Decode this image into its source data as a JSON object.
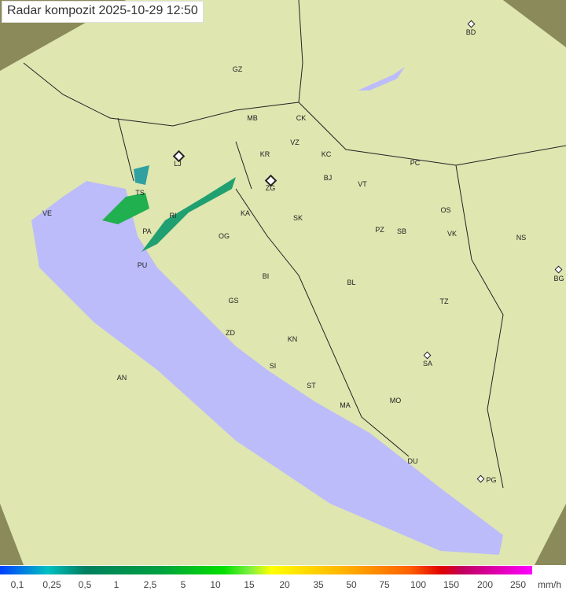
{
  "title": "Radar kompozit  2025-10-29   12:50",
  "colors": {
    "sea": "#bcbcfa",
    "land": "#dfe6b0",
    "outside": "#8a8a5a",
    "radar_echo": "#20a060"
  },
  "cities": [
    "BD",
    "GZ",
    "MB",
    "CK",
    "VZ",
    "KR",
    "KC",
    "PC",
    "LJ",
    "ZG",
    "BJ",
    "VT",
    "VE",
    "TS",
    "KA",
    "SK",
    "OS",
    "RI",
    "PA",
    "PZ",
    "SB",
    "VK",
    "NS",
    "OG",
    "PU",
    "BI",
    "BL",
    "BG",
    "GS",
    "TZ",
    "ZD",
    "KN",
    "SA",
    "AN",
    "SI",
    "ST",
    "MO",
    "MA",
    "DU",
    "PG"
  ],
  "legend": {
    "ticks": [
      "0,1",
      "0,25",
      "0,5",
      "1",
      "2,5",
      "5",
      "10",
      "15",
      "20",
      "35",
      "50",
      "75",
      "100",
      "150",
      "200",
      "250"
    ],
    "unit": "mm/h"
  }
}
